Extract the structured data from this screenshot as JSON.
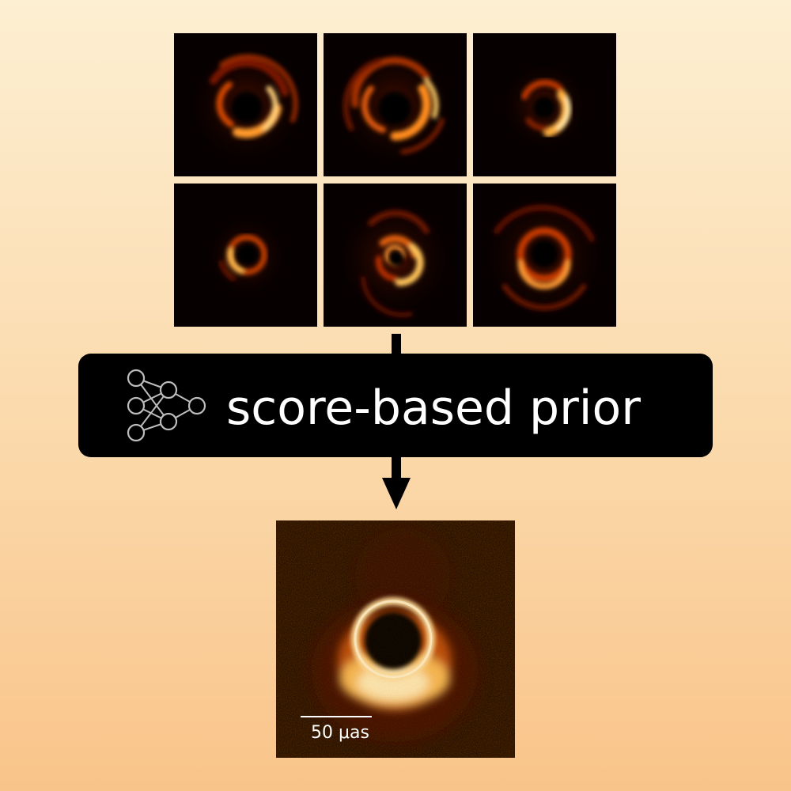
{
  "banner": {
    "label": "score-based prior"
  },
  "scale_bar": {
    "label": "50 μas"
  },
  "colors": {
    "background_top": "#fdefd2",
    "background_bottom": "#f9c48a",
    "banner": "#000000",
    "text": "#ffffff",
    "hot_colormap": [
      "#060000",
      "#5a0800",
      "#c42600",
      "#ff7a0a",
      "#ffc24a",
      "#fff6d0"
    ]
  },
  "icons": {
    "network": "neural-network-icon",
    "arrow": "arrow-down-icon"
  }
}
